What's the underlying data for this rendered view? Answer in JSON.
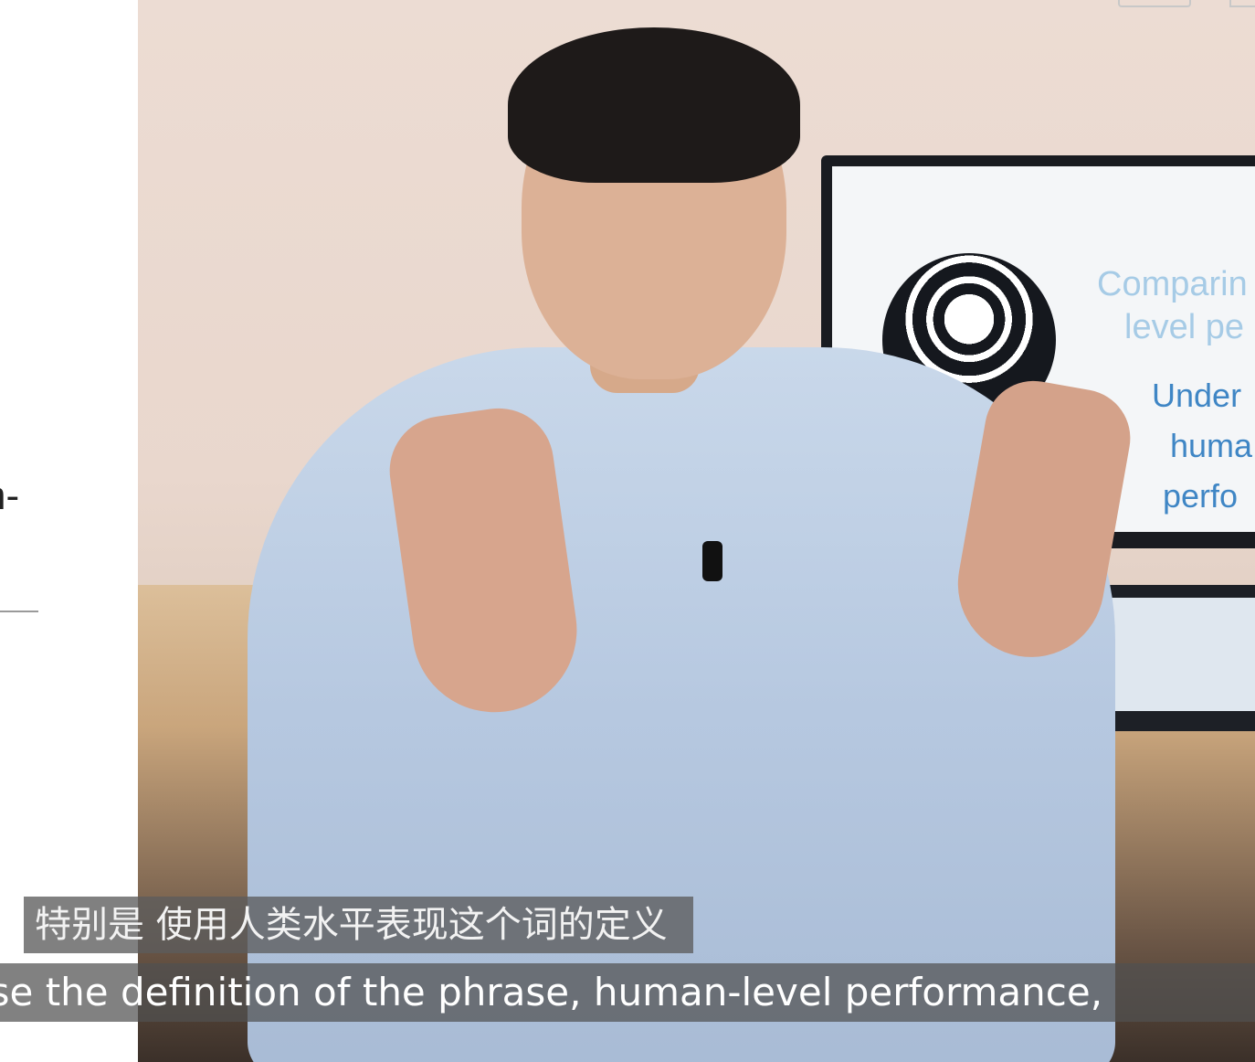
{
  "left_panel": {
    "text_fragment": "n-"
  },
  "video": {
    "slide_lines": [
      "Comparin",
      "level pe",
      "Under",
      "huma",
      "perfo"
    ]
  },
  "subtitles": {
    "chinese": "特别是 使用人类水平表现这个词的定义",
    "english": "use the definition of the phrase, human-level performance,"
  },
  "icons": {
    "top_right": "window-icon"
  }
}
